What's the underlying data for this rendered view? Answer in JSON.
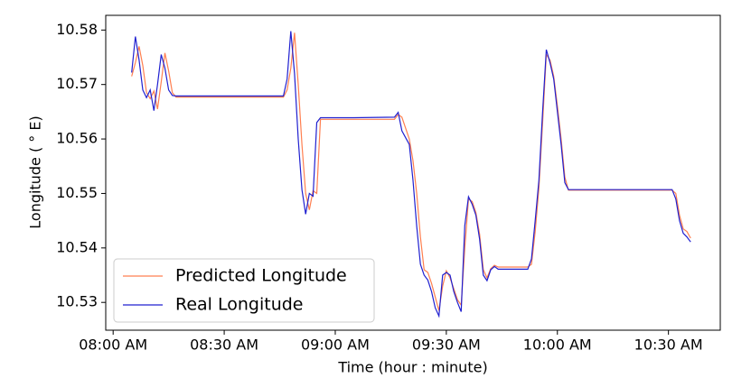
{
  "chart_data": {
    "type": "line",
    "xlabel": "Time (hour : minute)",
    "ylabel": "Longitude ( ° E)",
    "x": [
      "08:05",
      "08:06",
      "08:07",
      "08:08",
      "08:09",
      "08:10",
      "08:11",
      "08:12",
      "08:13",
      "08:14",
      "08:15",
      "08:16",
      "08:17",
      "08:30",
      "08:46",
      "08:47",
      "08:48",
      "08:49",
      "08:50",
      "08:51",
      "08:52",
      "08:53",
      "08:54",
      "08:55",
      "08:56",
      "09:05",
      "09:16",
      "09:17",
      "09:18",
      "09:20",
      "09:21",
      "09:22",
      "09:23",
      "09:24",
      "09:25",
      "09:26",
      "09:27",
      "09:28",
      "09:29",
      "09:30",
      "09:31",
      "09:32",
      "09:33",
      "09:34",
      "09:35",
      "09:36",
      "09:37",
      "09:38",
      "09:39",
      "09:40",
      "09:41",
      "09:42",
      "09:43",
      "09:44",
      "09:52",
      "09:53",
      "09:54",
      "09:55",
      "09:56",
      "09:57",
      "09:58",
      "09:59",
      "10:00",
      "10:01",
      "10:02",
      "10:03",
      "10:20",
      "10:31",
      "10:32",
      "10:33",
      "10:34",
      "10:35",
      "10:36"
    ],
    "series": [
      {
        "name": "Predicted Longitude",
        "color": "#ff7f50",
        "values": [
          10.5715,
          10.574,
          10.577,
          10.5735,
          10.5685,
          10.5674,
          10.5688,
          10.5655,
          10.5705,
          10.5758,
          10.5725,
          10.5685,
          10.5677,
          10.5677,
          10.5677,
          10.569,
          10.573,
          10.5795,
          10.57,
          10.559,
          10.55,
          10.547,
          10.5505,
          10.55,
          10.5636,
          10.5636,
          10.5636,
          10.5645,
          10.564,
          10.56,
          10.556,
          10.55,
          10.542,
          10.536,
          10.5355,
          10.5335,
          10.531,
          10.5285,
          10.533,
          10.5358,
          10.5345,
          10.5325,
          10.5305,
          10.5295,
          10.54,
          10.549,
          10.5485,
          10.5465,
          10.5425,
          10.536,
          10.5345,
          10.5362,
          10.5368,
          10.5365,
          10.5365,
          10.537,
          10.543,
          10.551,
          10.563,
          10.5755,
          10.5745,
          10.5715,
          10.566,
          10.56,
          10.553,
          10.5506,
          10.5506,
          10.5506,
          10.55,
          10.546,
          10.5435,
          10.543,
          10.5418
        ]
      },
      {
        "name": "Real Longitude",
        "color": "#2020d0",
        "values": [
          10.5722,
          10.5788,
          10.5745,
          10.569,
          10.5676,
          10.569,
          10.5652,
          10.57,
          10.5755,
          10.573,
          10.569,
          10.568,
          10.5679,
          10.5679,
          10.5679,
          10.571,
          10.5798,
          10.572,
          10.56,
          10.5507,
          10.5462,
          10.55,
          10.5495,
          10.563,
          10.5639,
          10.5639,
          10.564,
          10.5649,
          10.5615,
          10.559,
          10.5524,
          10.544,
          10.537,
          10.535,
          10.5341,
          10.532,
          10.529,
          10.5275,
          10.535,
          10.5355,
          10.535,
          10.532,
          10.53,
          10.5283,
          10.5441,
          10.5494,
          10.548,
          10.546,
          10.5416,
          10.535,
          10.534,
          10.536,
          10.5366,
          10.5361,
          10.5361,
          10.538,
          10.545,
          10.5524,
          10.565,
          10.5764,
          10.574,
          10.571,
          10.565,
          10.559,
          10.552,
          10.5507,
          10.5507,
          10.5507,
          10.549,
          10.545,
          10.5427,
          10.542,
          10.5411
        ]
      }
    ],
    "xlim": [
      "07:58",
      "10:44"
    ],
    "xticks": [
      {
        "value": "08:00",
        "label": "08:00 AM"
      },
      {
        "value": "08:30",
        "label": "08:30 AM"
      },
      {
        "value": "09:00",
        "label": "09:00 AM"
      },
      {
        "value": "09:30",
        "label": "09:30 AM"
      },
      {
        "value": "10:00",
        "label": "10:00 AM"
      },
      {
        "value": "10:30",
        "label": "10:30 AM"
      }
    ],
    "ylim": [
      10.5249,
      10.5827
    ],
    "yticks": [
      10.53,
      10.54,
      10.55,
      10.56,
      10.57,
      10.58
    ],
    "legend": "lower left"
  }
}
